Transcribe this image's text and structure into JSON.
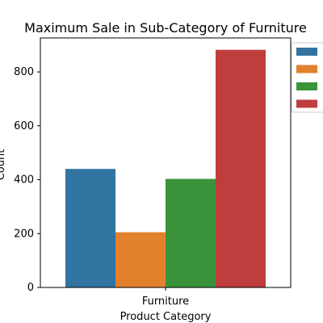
{
  "chart_data": {
    "type": "bar",
    "title": "Maximum Sale in Sub-Category of Furniture",
    "xlabel": "Product Category",
    "ylabel": "Count",
    "categories": [
      "Furniture"
    ],
    "series": [
      {
        "values": [
          440
        ],
        "color": "#3274a1"
      },
      {
        "values": [
          205
        ],
        "color": "#e1812c"
      },
      {
        "values": [
          403
        ],
        "color": "#3a923a"
      },
      {
        "values": [
          882
        ],
        "color": "#c03d3e"
      }
    ],
    "ylim": [
      0,
      926
    ],
    "yticks": [
      0,
      200,
      400,
      600,
      800
    ],
    "grid": false,
    "legend_position": "top-right"
  }
}
